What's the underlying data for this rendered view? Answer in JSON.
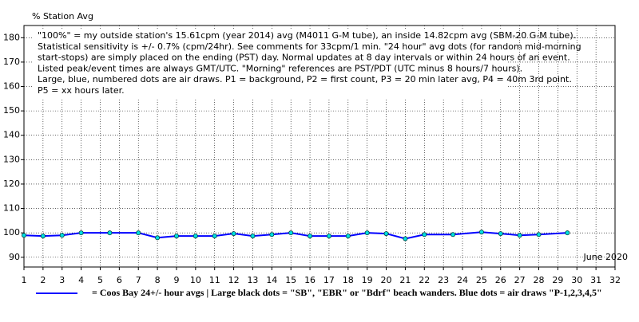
{
  "chart_data": {
    "type": "line",
    "y_label": "% Station Avg",
    "notes": [
      "\"100%\" = my outside station's 15.61cpm (year 2014) avg (M4011 G-M tube), an inside 14.82cpm avg (SBM-20 G-M tube).",
      "Statistical sensitivity is +/- 0.7% (cpm/24hr). See comments for 33cpm/1 min. \"24 hour\" avg dots (for random mid-morning",
      "start-stops) are simply placed on the ending (PST) day. Normal updates at 8 day intervals or within 24 hours of an event.",
      "Listed peak/event times are always GMT/UTC.  \"Morning\" references are PST/PDT (UTC minus 8 hours/7 hours).",
      "Large, blue, numbered dots are air draws. P1 = background, P2 = first count, P3 = 20 min later avg, P4 = 40m 3rd point.",
      "P5 = xx hours later."
    ],
    "period_label": "June 2020",
    "x": [
      1,
      2,
      3,
      4,
      5.5,
      7,
      8,
      9,
      10,
      11,
      12,
      13,
      14,
      15,
      16,
      17,
      18,
      19,
      20,
      21,
      22,
      23.5,
      25,
      26,
      27,
      28,
      29.5
    ],
    "series": [
      {
        "name": "= Coos Bay 24+/- hour avgs | Large black dots = \"SB\", \"EBR\" or \"Bdrf\" beach wanders. Blue dots = air draws \"P-1,2,3,4,5\"",
        "color": "#0000ff",
        "marker_color": "#00e0e0",
        "values": [
          99.0,
          98.7,
          99.0,
          100.0,
          100.0,
          100.0,
          98.0,
          98.7,
          98.7,
          98.7,
          99.7,
          98.7,
          99.3,
          100.0,
          98.7,
          98.7,
          98.7,
          100.0,
          99.7,
          97.6,
          99.3,
          99.3,
          100.3,
          99.7,
          99.0,
          99.3,
          100.0
        ]
      }
    ],
    "xlim": [
      1,
      32
    ],
    "xticks": [
      1,
      2,
      3,
      4,
      5,
      6,
      7,
      8,
      9,
      10,
      11,
      12,
      13,
      14,
      15,
      16,
      17,
      18,
      19,
      20,
      21,
      22,
      23,
      24,
      25,
      26,
      27,
      28,
      29,
      30,
      31,
      32
    ],
    "ylim": [
      86,
      185
    ],
    "yticks": [
      90,
      100,
      110,
      120,
      130,
      140,
      150,
      160,
      170,
      180
    ],
    "grid": true
  }
}
